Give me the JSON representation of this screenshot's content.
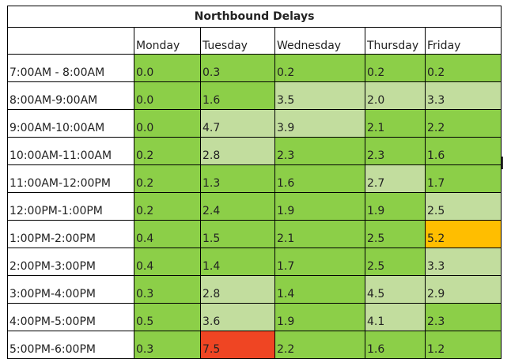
{
  "title": "Northbound Delays",
  "days": [
    "Monday",
    "Tuesday",
    "Wednesday",
    "Thursday",
    "Friday"
  ],
  "colors": {
    "green": "#8ccf48",
    "light": "#c2dd9e",
    "orange": "#ffbe00",
    "red": "#ef4523"
  },
  "rows": [
    {
      "label": "7:00AM - 8:00AM",
      "values": [
        "0.0",
        "0.3",
        "0.2",
        "0.2",
        "0.2"
      ],
      "shade": [
        "green",
        "green",
        "green",
        "green",
        "green"
      ]
    },
    {
      "label": "8:00AM-9:00AM",
      "values": [
        "0.0",
        "1.6",
        "3.5",
        "2.0",
        "3.3"
      ],
      "shade": [
        "green",
        "green",
        "light",
        "light",
        "light"
      ]
    },
    {
      "label": "9:00AM-10:00AM",
      "values": [
        "0.0",
        "4.7",
        "3.9",
        "2.1",
        "2.2"
      ],
      "shade": [
        "green",
        "light",
        "light",
        "green",
        "green"
      ]
    },
    {
      "label": "10:00AM-11:00AM",
      "values": [
        "0.2",
        "2.8",
        "2.3",
        "2.3",
        "1.6"
      ],
      "shade": [
        "green",
        "light",
        "green",
        "green",
        "green"
      ]
    },
    {
      "label": "11:00AM-12:00PM",
      "values": [
        "0.2",
        "1.3",
        "1.6",
        "2.7",
        "1.7"
      ],
      "shade": [
        "green",
        "green",
        "green",
        "light",
        "green"
      ]
    },
    {
      "label": "12:00PM-1:00PM",
      "values": [
        "0.2",
        "2.4",
        "1.9",
        "1.9",
        "2.5"
      ],
      "shade": [
        "green",
        "green",
        "green",
        "green",
        "light"
      ]
    },
    {
      "label": "1:00PM-2:00PM",
      "values": [
        "0.4",
        "1.5",
        "2.1",
        "2.5",
        "5.2"
      ],
      "shade": [
        "green",
        "green",
        "green",
        "green",
        "orange"
      ]
    },
    {
      "label": "2:00PM-3:00PM",
      "values": [
        "0.4",
        "1.4",
        "1.7",
        "2.5",
        "3.3"
      ],
      "shade": [
        "green",
        "green",
        "green",
        "green",
        "light"
      ]
    },
    {
      "label": "3:00PM-4:00PM",
      "values": [
        "0.3",
        "2.8",
        "1.4",
        "4.5",
        "2.9"
      ],
      "shade": [
        "green",
        "light",
        "green",
        "light",
        "light"
      ]
    },
    {
      "label": "4:00PM-5:00PM",
      "values": [
        "0.5",
        "3.6",
        "1.9",
        "4.1",
        "2.3"
      ],
      "shade": [
        "green",
        "light",
        "green",
        "light",
        "green"
      ]
    },
    {
      "label": "5:00PM-6:00PM",
      "values": [
        "0.3",
        "7.5",
        "2.2",
        "1.6",
        "1.2"
      ],
      "shade": [
        "green",
        "red",
        "green",
        "green",
        "green"
      ]
    }
  ]
}
